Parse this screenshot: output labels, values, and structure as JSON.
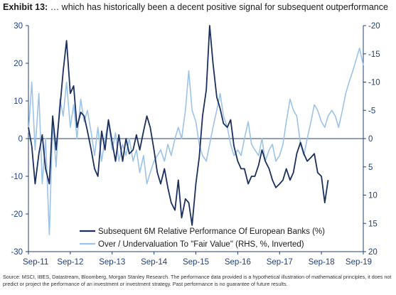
{
  "header": {
    "exhibit_label": "Exhibit 13:",
    "title_text": " … which has historically been a decent positive signal for subsequent outperformance"
  },
  "footer": {
    "source": "Source: MSCI, IBES, Datastream, Bloomberg, Morgan Stanley Research. The performance data provided is a hypothetical illustration of mathematical principles, it does not predict or project the performance of an investment or investment strategy. Past performance is no guarantee of future results."
  },
  "chart_data": {
    "type": "line",
    "title": "… which has historically been a decent positive signal for subsequent outperformance",
    "x_ticks": [
      "Sep-11",
      "Sep-12",
      "Sep-13",
      "Sep-14",
      "Sep-15",
      "Sep-16",
      "Sep-17",
      "Sep-18",
      "Sep-19"
    ],
    "x_range": [
      2011.67,
      2019.67
    ],
    "y_left": {
      "ticks": [
        30,
        20,
        10,
        0,
        -10,
        -20,
        -30
      ],
      "range": [
        -30,
        30
      ]
    },
    "y_right": {
      "ticks": [
        -20,
        -15,
        -10,
        -5,
        0,
        5,
        10,
        15,
        20
      ],
      "range": [
        -20,
        20
      ],
      "inverted": true
    },
    "grid": false,
    "legend_position": "bottom-center",
    "colors": {
      "series1": "#1b2f5e",
      "series2": "#9cc3e8",
      "axis": "#1f3f7a"
    },
    "series": [
      {
        "name": "Subsequent 6M Relative Performance Of European Banks (%)",
        "axis": "left",
        "x": [
          2011.67,
          2011.75,
          2011.83,
          2011.92,
          2012.0,
          2012.08,
          2012.17,
          2012.25,
          2012.33,
          2012.42,
          2012.5,
          2012.58,
          2012.67,
          2012.75,
          2012.83,
          2012.92,
          2013.0,
          2013.08,
          2013.17,
          2013.25,
          2013.33,
          2013.42,
          2013.5,
          2013.58,
          2013.67,
          2013.75,
          2013.83,
          2013.92,
          2014.0,
          2014.08,
          2014.17,
          2014.25,
          2014.33,
          2014.42,
          2014.5,
          2014.58,
          2014.67,
          2014.75,
          2014.83,
          2014.92,
          2015.0,
          2015.08,
          2015.17,
          2015.25,
          2015.33,
          2015.42,
          2015.5,
          2015.58,
          2015.67,
          2015.75,
          2015.83,
          2015.92,
          2016.0,
          2016.08,
          2016.17,
          2016.25,
          2016.33,
          2016.42,
          2016.5,
          2016.58,
          2016.67,
          2016.75,
          2016.83,
          2016.92,
          2017.0,
          2017.08,
          2017.17,
          2017.25,
          2017.33,
          2017.42,
          2017.5,
          2017.58,
          2017.67,
          2017.75,
          2017.83,
          2017.92,
          2018.0,
          2018.08,
          2018.17,
          2018.25,
          2018.33,
          2018.42,
          2018.5,
          2018.58,
          2018.67,
          2018.75,
          2018.83
        ],
        "values": [
          3,
          -2,
          -12,
          -4,
          1,
          -8,
          -12,
          6,
          -3,
          8,
          18,
          26,
          12,
          14,
          3,
          7,
          6,
          2,
          -3,
          -8,
          -10,
          2,
          -3,
          5,
          -1,
          -6,
          1,
          -6,
          0,
          -4,
          -3,
          1,
          -3,
          2,
          6,
          3,
          -3,
          -9,
          -12,
          -8,
          -13,
          -17,
          -19,
          -11,
          -21,
          -16,
          -17,
          -23,
          -12,
          -5,
          6,
          13,
          30,
          20,
          11,
          8,
          4,
          3,
          5,
          -2,
          -6,
          -8,
          -8,
          -12,
          -10,
          -10,
          -7,
          -3,
          -6,
          -8,
          -11,
          -13,
          -12,
          -11,
          -8,
          -11,
          -9,
          -4,
          -1,
          -4,
          -6,
          -5,
          -4,
          -9,
          -10,
          -17,
          -11
        ]
      },
      {
        "name": "Over / Undervaluation To \"Fair Value\" (RHS, %, Inverted)",
        "axis": "right",
        "x": [
          2011.67,
          2011.75,
          2011.83,
          2011.92,
          2012.0,
          2012.08,
          2012.17,
          2012.25,
          2012.33,
          2012.42,
          2012.5,
          2012.58,
          2012.67,
          2012.75,
          2012.83,
          2012.92,
          2013.0,
          2013.08,
          2013.17,
          2013.25,
          2013.33,
          2013.42,
          2013.5,
          2013.58,
          2013.67,
          2013.75,
          2013.83,
          2013.92,
          2014.0,
          2014.08,
          2014.17,
          2014.25,
          2014.33,
          2014.42,
          2014.5,
          2014.58,
          2014.67,
          2014.75,
          2014.83,
          2014.92,
          2015.0,
          2015.08,
          2015.17,
          2015.25,
          2015.33,
          2015.42,
          2015.5,
          2015.58,
          2015.67,
          2015.75,
          2015.83,
          2015.92,
          2016.0,
          2016.08,
          2016.17,
          2016.25,
          2016.33,
          2016.42,
          2016.5,
          2016.58,
          2016.67,
          2016.75,
          2016.83,
          2016.92,
          2017.0,
          2017.08,
          2017.17,
          2017.25,
          2017.33,
          2017.42,
          2017.5,
          2017.58,
          2017.67,
          2017.75,
          2017.83,
          2017.92,
          2018.0,
          2018.08,
          2018.17,
          2018.25,
          2018.33,
          2018.42,
          2018.5,
          2018.58,
          2018.67,
          2018.75,
          2018.83,
          2018.92,
          2019.0,
          2019.08,
          2019.17,
          2019.25,
          2019.33,
          2019.42,
          2019.5,
          2019.58,
          2019.67
        ],
        "values": [
          -1,
          -10,
          2,
          -8,
          8,
          0,
          17,
          -3,
          5,
          -7,
          -4,
          -10,
          -2,
          -6,
          0,
          -7,
          -3,
          -5,
          -1,
          3,
          -2,
          4,
          0,
          -3,
          2,
          -1,
          4,
          1,
          3,
          0,
          4,
          2,
          6,
          3,
          8,
          6,
          4,
          3,
          2,
          4,
          1,
          3,
          0,
          -2,
          0,
          -5,
          -12,
          -5,
          -3,
          1,
          3,
          4,
          1,
          -2,
          -5,
          -8,
          -4,
          -2,
          1,
          3,
          2,
          3,
          0,
          -3,
          1,
          2,
          3,
          0,
          4,
          2,
          1,
          4,
          3,
          1,
          -3,
          -7,
          -5,
          -4,
          1,
          3,
          0,
          -3,
          -6,
          -5,
          -3,
          -2,
          -4,
          -5,
          -4,
          -2,
          -5,
          -8,
          -10,
          -12,
          -14,
          -16,
          -13
        ]
      }
    ]
  }
}
